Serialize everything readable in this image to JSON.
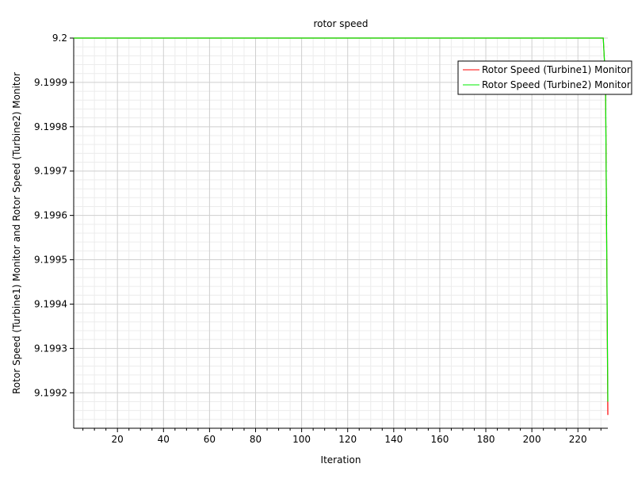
{
  "chart_data": {
    "type": "line",
    "title": "rotor speed",
    "xlabel": "Iteration",
    "ylabel": "Rotor Speed (Turbine1) Monitor and Rotor Speed (Turbine2) Monitor",
    "xlim": [
      1,
      233
    ],
    "ylim": [
      9.19912,
      9.2
    ],
    "x_ticks": [
      20,
      40,
      60,
      80,
      100,
      120,
      140,
      160,
      180,
      200,
      220
    ],
    "y_ticks": [
      9.1992,
      9.1993,
      9.1994,
      9.1995,
      9.1996,
      9.1997,
      9.1998,
      9.1999,
      9.2
    ],
    "y_tick_labels": [
      "9.1992",
      "9.1993",
      "9.1994",
      "9.1995",
      "9.1996",
      "9.1997",
      "9.1998",
      "9.1999",
      "9.2"
    ],
    "grid": true,
    "legend_position": "top-right",
    "series": [
      {
        "name": "Rotor Speed (Turbine1) Monitor",
        "color": "#ff0000",
        "points": [
          [
            1,
            9.2
          ],
          [
            231,
            9.2
          ],
          [
            232,
            9.1999
          ],
          [
            233,
            9.19915
          ]
        ]
      },
      {
        "name": "Rotor Speed (Turbine2) Monitor",
        "color": "#00ee00",
        "points": [
          [
            1,
            9.2
          ],
          [
            231,
            9.2
          ],
          [
            232,
            9.1999
          ],
          [
            233,
            9.19918
          ]
        ]
      }
    ]
  }
}
